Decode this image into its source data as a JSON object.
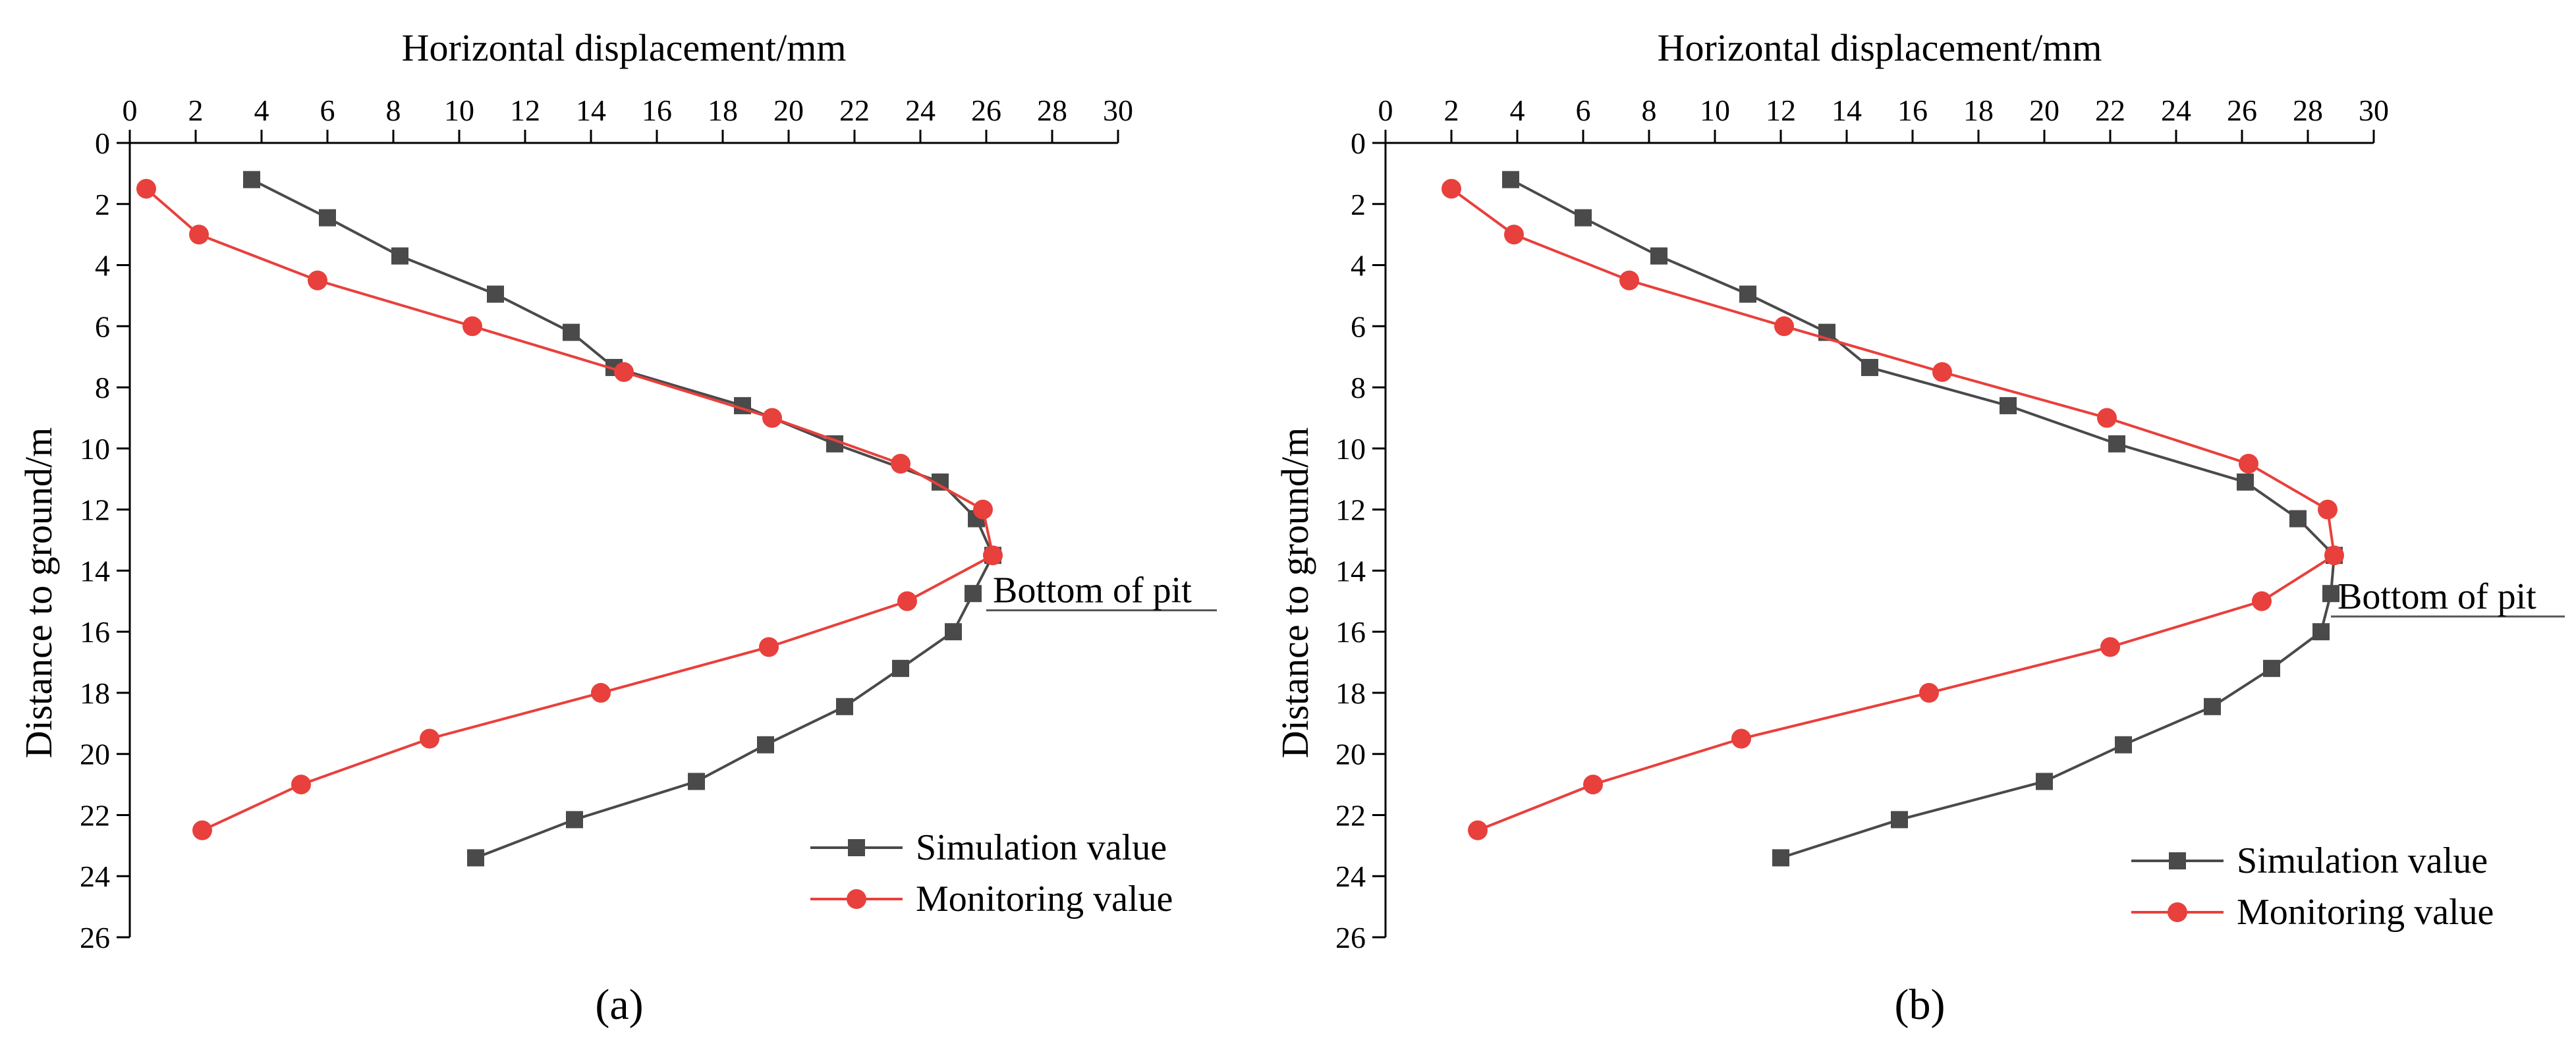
{
  "chart_data": [
    {
      "type": "line",
      "panel": "a",
      "caption": "(a)",
      "xlabel": "Horizontal displacement/mm",
      "ylabel": "Distance to ground/m",
      "xlim": [
        0,
        30
      ],
      "ylim": [
        0,
        26
      ],
      "x_ticks": [
        0,
        2,
        4,
        6,
        8,
        10,
        12,
        14,
        16,
        18,
        20,
        22,
        24,
        26,
        28,
        30
      ],
      "y_ticks": [
        0,
        2,
        4,
        6,
        8,
        10,
        12,
        14,
        16,
        18,
        20,
        22,
        24,
        26
      ],
      "x_axis_position": "top",
      "y_axis_inverted": true,
      "grid": false,
      "legend_position": "bottom-right",
      "annotation": {
        "text": "Bottom of pit",
        "depth": 15.3,
        "x_from": 26.0,
        "x_to": 33.0
      },
      "series": [
        {
          "name": "Simulation value",
          "color": "#4a4a4a",
          "marker": "square",
          "points": [
            [
              3.7,
              1.2
            ],
            [
              6.0,
              2.45
            ],
            [
              8.2,
              3.7
            ],
            [
              11.1,
              4.95
            ],
            [
              13.4,
              6.2
            ],
            [
              14.7,
              7.35
            ],
            [
              18.6,
              8.6
            ],
            [
              21.4,
              9.85
            ],
            [
              24.6,
              11.1
            ],
            [
              25.7,
              12.3
            ],
            [
              26.2,
              13.5
            ],
            [
              25.6,
              14.75
            ],
            [
              25.0,
              16.0
            ],
            [
              23.4,
              17.2
            ],
            [
              21.7,
              18.45
            ],
            [
              19.3,
              19.7
            ],
            [
              17.2,
              20.9
            ],
            [
              13.5,
              22.15
            ],
            [
              10.5,
              23.4
            ]
          ]
        },
        {
          "name": "Monitoring value",
          "color": "#e8403c",
          "marker": "circle",
          "points": [
            [
              0.5,
              1.5
            ],
            [
              2.1,
              3.0
            ],
            [
              5.7,
              4.5
            ],
            [
              10.4,
              6.0
            ],
            [
              15.0,
              7.5
            ],
            [
              19.5,
              9.0
            ],
            [
              23.4,
              10.5
            ],
            [
              25.9,
              12.0
            ],
            [
              26.2,
              13.5
            ],
            [
              23.6,
              15.0
            ],
            [
              19.4,
              16.5
            ],
            [
              14.3,
              18.0
            ],
            [
              9.1,
              19.5
            ],
            [
              5.2,
              21.0
            ],
            [
              2.2,
              22.5
            ]
          ]
        }
      ]
    },
    {
      "type": "line",
      "panel": "b",
      "caption": "(b)",
      "xlabel": "Horizontal displacement/mm",
      "ylabel": "Distance to ground/m",
      "xlim": [
        0,
        30
      ],
      "ylim": [
        0,
        26
      ],
      "x_ticks": [
        0,
        2,
        4,
        6,
        8,
        10,
        12,
        14,
        16,
        18,
        20,
        22,
        24,
        26,
        28,
        30
      ],
      "y_ticks": [
        0,
        2,
        4,
        6,
        8,
        10,
        12,
        14,
        16,
        18,
        20,
        22,
        24,
        26
      ],
      "x_axis_position": "top",
      "y_axis_inverted": true,
      "grid": false,
      "legend_position": "bottom-right",
      "annotation": {
        "text": "Bottom of pit",
        "depth": 15.5,
        "x_from": 28.7,
        "x_to": 35.8
      },
      "series": [
        {
          "name": "Simulation value",
          "color": "#4a4a4a",
          "marker": "square",
          "points": [
            [
              3.8,
              1.2
            ],
            [
              6.0,
              2.45
            ],
            [
              8.3,
              3.7
            ],
            [
              11.0,
              4.95
            ],
            [
              13.4,
              6.2
            ],
            [
              14.7,
              7.35
            ],
            [
              18.9,
              8.6
            ],
            [
              22.2,
              9.85
            ],
            [
              26.1,
              11.1
            ],
            [
              27.7,
              12.3
            ],
            [
              28.8,
              13.5
            ],
            [
              28.7,
              14.75
            ],
            [
              28.4,
              16.0
            ],
            [
              26.9,
              17.2
            ],
            [
              25.1,
              18.45
            ],
            [
              22.4,
              19.7
            ],
            [
              20.0,
              20.9
            ],
            [
              15.6,
              22.15
            ],
            [
              12.0,
              23.4
            ]
          ]
        },
        {
          "name": "Monitoring value",
          "color": "#e8403c",
          "marker": "circle",
          "points": [
            [
              2.0,
              1.5
            ],
            [
              3.9,
              3.0
            ],
            [
              7.4,
              4.5
            ],
            [
              12.1,
              6.0
            ],
            [
              16.9,
              7.5
            ],
            [
              21.9,
              9.0
            ],
            [
              26.2,
              10.5
            ],
            [
              28.6,
              12.0
            ],
            [
              28.8,
              13.5
            ],
            [
              26.6,
              15.0
            ],
            [
              22.0,
              16.5
            ],
            [
              16.5,
              18.0
            ],
            [
              10.8,
              19.5
            ],
            [
              6.3,
              21.0
            ],
            [
              2.8,
              22.5
            ]
          ]
        }
      ]
    }
  ]
}
